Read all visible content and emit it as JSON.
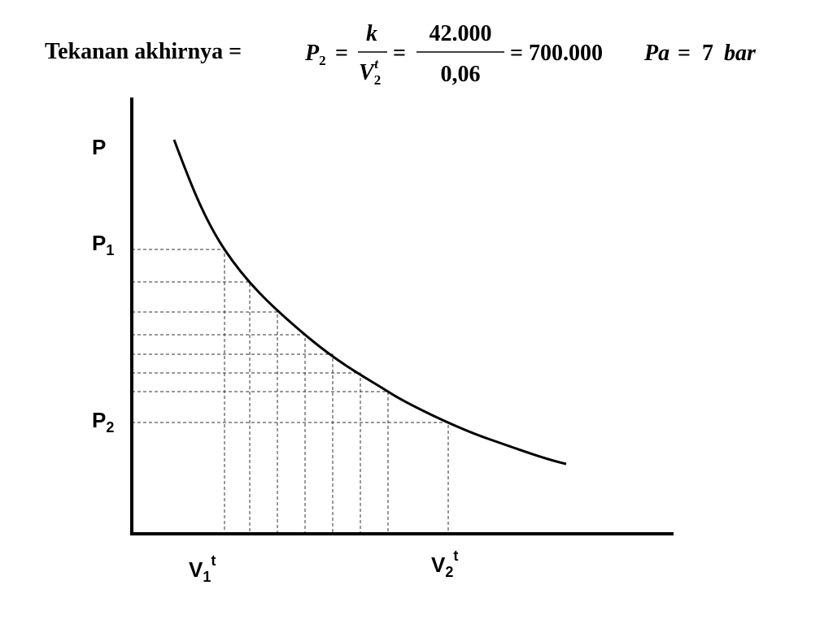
{
  "heading": {
    "label": "Tekanan akhirnya =",
    "operator": "=",
    "formula": {
      "lhs": {
        "symbol": "P",
        "subscript": "2"
      },
      "fraction1": {
        "numerator": "k",
        "denominator": {
          "symbol": "V",
          "subscript": "2",
          "superscript": "t"
        }
      },
      "fraction2": {
        "numerator": "42.000",
        "denominator": "0,06"
      },
      "result": {
        "value": "700.000",
        "unit": "Pa"
      },
      "converted": {
        "value": "7",
        "unit": "bar"
      }
    }
  },
  "diagram": {
    "y_axis_label": "P",
    "y_markers": [
      {
        "symbol": "P",
        "subscript": "1"
      },
      {
        "symbol": "P",
        "subscript": "2"
      }
    ],
    "x_markers": [
      {
        "symbol": "V",
        "subscript": "1",
        "superscript": "t"
      },
      {
        "symbol": "V",
        "subscript": "2",
        "superscript": "t"
      }
    ]
  }
}
